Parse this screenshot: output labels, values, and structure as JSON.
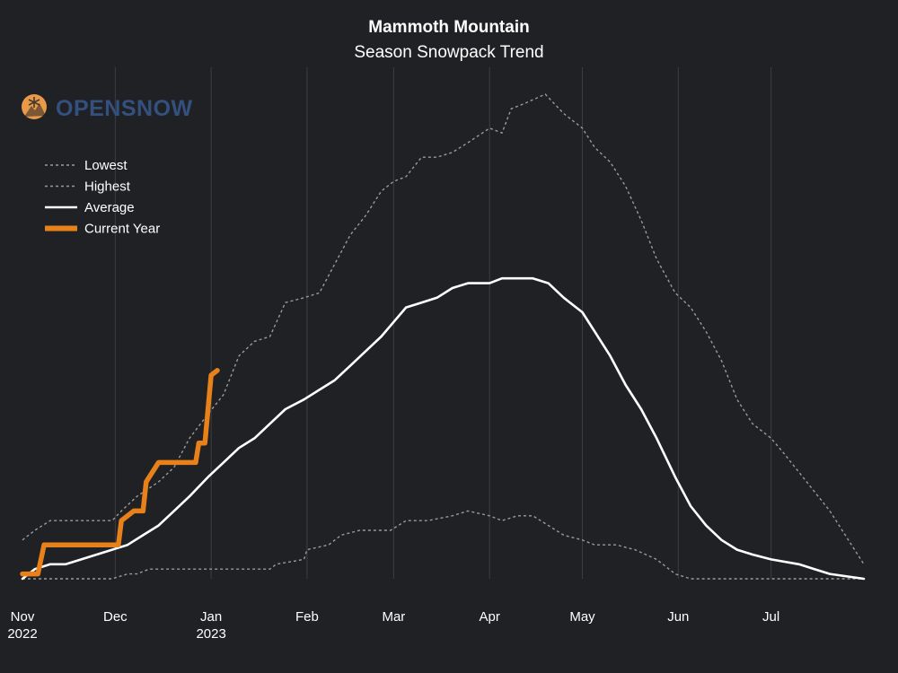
{
  "chart_data": {
    "type": "line",
    "title": "Mammoth Mountain",
    "subtitle": "Season Snowpack Trend",
    "brand": "OPENSNOW",
    "xlabel": "",
    "ylabel": "",
    "grid": {
      "vertical": true,
      "horizontal": false
    },
    "legend_position": "top-left",
    "x_ticks": [
      {
        "date": "2022-11-01",
        "label": "Nov",
        "label2": "2022"
      },
      {
        "date": "2022-12-01",
        "label": "Dec",
        "label2": ""
      },
      {
        "date": "2023-01-01",
        "label": "Jan",
        "label2": "2023"
      },
      {
        "date": "2023-02-01",
        "label": "Feb",
        "label2": ""
      },
      {
        "date": "2023-03-01",
        "label": "Mar",
        "label2": ""
      },
      {
        "date": "2023-04-01",
        "label": "Apr",
        "label2": ""
      },
      {
        "date": "2023-05-01",
        "label": "May",
        "label2": ""
      },
      {
        "date": "2023-06-01",
        "label": "Jun",
        "label2": ""
      },
      {
        "date": "2023-07-01",
        "label": "Jul",
        "label2": ""
      }
    ],
    "xlim": [
      "2022-11-01",
      "2023-07-31"
    ],
    "ylim": [
      0,
      1
    ],
    "colors": {
      "background": "#202124",
      "grid": "#3c3e42",
      "lowest": "#9a9a9a",
      "highest": "#9a9a9a",
      "average": "#ffffff",
      "current": "#e8811a",
      "brand_icon": "#e89a4a",
      "brand_text": "#33507e"
    },
    "series": [
      {
        "name": "Lowest",
        "style": "dashed",
        "points": [
          [
            "2022-11-01",
            0.0
          ],
          [
            "2022-11-15",
            0.0
          ],
          [
            "2022-11-20",
            0.0
          ],
          [
            "2022-11-30",
            0.0
          ],
          [
            "2022-12-05",
            0.01
          ],
          [
            "2022-12-08",
            0.01
          ],
          [
            "2022-12-12",
            0.02
          ],
          [
            "2022-12-20",
            0.02
          ],
          [
            "2022-12-31",
            0.02
          ],
          [
            "2023-01-10",
            0.02
          ],
          [
            "2023-01-20",
            0.02
          ],
          [
            "2023-01-22",
            0.03
          ],
          [
            "2023-01-31",
            0.04
          ],
          [
            "2023-02-01",
            0.06
          ],
          [
            "2023-02-08",
            0.07
          ],
          [
            "2023-02-12",
            0.09
          ],
          [
            "2023-02-18",
            0.1
          ],
          [
            "2023-02-28",
            0.1
          ],
          [
            "2023-03-05",
            0.12
          ],
          [
            "2023-03-12",
            0.12
          ],
          [
            "2023-03-20",
            0.13
          ],
          [
            "2023-03-25",
            0.14
          ],
          [
            "2023-04-01",
            0.13
          ],
          [
            "2023-04-05",
            0.12
          ],
          [
            "2023-04-10",
            0.13
          ],
          [
            "2023-04-15",
            0.13
          ],
          [
            "2023-04-20",
            0.11
          ],
          [
            "2023-04-25",
            0.09
          ],
          [
            "2023-05-01",
            0.08
          ],
          [
            "2023-05-05",
            0.07
          ],
          [
            "2023-05-12",
            0.07
          ],
          [
            "2023-05-18",
            0.06
          ],
          [
            "2023-05-25",
            0.04
          ],
          [
            "2023-05-31",
            0.01
          ],
          [
            "2023-06-05",
            0.0
          ],
          [
            "2023-06-15",
            0.0
          ],
          [
            "2023-07-01",
            0.0
          ],
          [
            "2023-07-15",
            0.0
          ],
          [
            "2023-07-31",
            0.0
          ]
        ]
      },
      {
        "name": "Highest",
        "style": "dashed",
        "points": [
          [
            "2022-11-01",
            0.08
          ],
          [
            "2022-11-05",
            0.1
          ],
          [
            "2022-11-10",
            0.12
          ],
          [
            "2022-11-20",
            0.12
          ],
          [
            "2022-11-30",
            0.12
          ],
          [
            "2022-12-03",
            0.14
          ],
          [
            "2022-12-08",
            0.17
          ],
          [
            "2022-12-15",
            0.2
          ],
          [
            "2022-12-20",
            0.23
          ],
          [
            "2022-12-25",
            0.29
          ],
          [
            "2022-12-31",
            0.34
          ],
          [
            "2023-01-05",
            0.38
          ],
          [
            "2023-01-10",
            0.46
          ],
          [
            "2023-01-15",
            0.49
          ],
          [
            "2023-01-20",
            0.5
          ],
          [
            "2023-01-25",
            0.57
          ],
          [
            "2023-01-31",
            0.58
          ],
          [
            "2023-02-05",
            0.59
          ],
          [
            "2023-02-10",
            0.65
          ],
          [
            "2023-02-15",
            0.71
          ],
          [
            "2023-02-20",
            0.75
          ],
          [
            "2023-02-25",
            0.8
          ],
          [
            "2023-03-01",
            0.82
          ],
          [
            "2023-03-05",
            0.83
          ],
          [
            "2023-03-10",
            0.87
          ],
          [
            "2023-03-15",
            0.87
          ],
          [
            "2023-03-20",
            0.88
          ],
          [
            "2023-03-25",
            0.9
          ],
          [
            "2023-04-01",
            0.93
          ],
          [
            "2023-04-05",
            0.92
          ],
          [
            "2023-04-08",
            0.97
          ],
          [
            "2023-04-12",
            0.98
          ],
          [
            "2023-04-19",
            1.0
          ],
          [
            "2023-04-25",
            0.96
          ],
          [
            "2023-05-01",
            0.93
          ],
          [
            "2023-05-05",
            0.89
          ],
          [
            "2023-05-10",
            0.86
          ],
          [
            "2023-05-15",
            0.81
          ],
          [
            "2023-05-20",
            0.74
          ],
          [
            "2023-05-25",
            0.66
          ],
          [
            "2023-05-31",
            0.59
          ],
          [
            "2023-06-05",
            0.56
          ],
          [
            "2023-06-10",
            0.51
          ],
          [
            "2023-06-15",
            0.45
          ],
          [
            "2023-06-20",
            0.37
          ],
          [
            "2023-06-25",
            0.32
          ],
          [
            "2023-07-01",
            0.29
          ],
          [
            "2023-07-05",
            0.26
          ],
          [
            "2023-07-10",
            0.22
          ],
          [
            "2023-07-15",
            0.18
          ],
          [
            "2023-07-20",
            0.14
          ],
          [
            "2023-07-25",
            0.09
          ],
          [
            "2023-07-31",
            0.03
          ]
        ]
      },
      {
        "name": "Average",
        "style": "solid",
        "points": [
          [
            "2022-11-01",
            0.0
          ],
          [
            "2022-11-05",
            0.02
          ],
          [
            "2022-11-10",
            0.03
          ],
          [
            "2022-11-15",
            0.03
          ],
          [
            "2022-11-20",
            0.04
          ],
          [
            "2022-11-30",
            0.06
          ],
          [
            "2022-12-05",
            0.07
          ],
          [
            "2022-12-10",
            0.09
          ],
          [
            "2022-12-15",
            0.11
          ],
          [
            "2022-12-20",
            0.14
          ],
          [
            "2022-12-25",
            0.17
          ],
          [
            "2022-12-31",
            0.21
          ],
          [
            "2023-01-05",
            0.24
          ],
          [
            "2023-01-10",
            0.27
          ],
          [
            "2023-01-15",
            0.29
          ],
          [
            "2023-01-20",
            0.32
          ],
          [
            "2023-01-25",
            0.35
          ],
          [
            "2023-01-31",
            0.37
          ],
          [
            "2023-02-05",
            0.39
          ],
          [
            "2023-02-10",
            0.41
          ],
          [
            "2023-02-15",
            0.44
          ],
          [
            "2023-02-20",
            0.47
          ],
          [
            "2023-02-25",
            0.5
          ],
          [
            "2023-03-01",
            0.53
          ],
          [
            "2023-03-05",
            0.56
          ],
          [
            "2023-03-10",
            0.57
          ],
          [
            "2023-03-15",
            0.58
          ],
          [
            "2023-03-20",
            0.6
          ],
          [
            "2023-03-25",
            0.61
          ],
          [
            "2023-04-01",
            0.61
          ],
          [
            "2023-04-05",
            0.62
          ],
          [
            "2023-04-10",
            0.62
          ],
          [
            "2023-04-15",
            0.62
          ],
          [
            "2023-04-20",
            0.61
          ],
          [
            "2023-04-25",
            0.58
          ],
          [
            "2023-05-01",
            0.55
          ],
          [
            "2023-05-05",
            0.51
          ],
          [
            "2023-05-10",
            0.46
          ],
          [
            "2023-05-15",
            0.4
          ],
          [
            "2023-05-20",
            0.35
          ],
          [
            "2023-05-25",
            0.29
          ],
          [
            "2023-05-31",
            0.21
          ],
          [
            "2023-06-05",
            0.15
          ],
          [
            "2023-06-10",
            0.11
          ],
          [
            "2023-06-15",
            0.08
          ],
          [
            "2023-06-20",
            0.06
          ],
          [
            "2023-06-25",
            0.05
          ],
          [
            "2023-07-01",
            0.04
          ],
          [
            "2023-07-10",
            0.03
          ],
          [
            "2023-07-15",
            0.02
          ],
          [
            "2023-07-20",
            0.01
          ],
          [
            "2023-07-31",
            0.0
          ]
        ]
      },
      {
        "name": "Current Year",
        "style": "thick",
        "points": [
          [
            "2022-11-01",
            0.01
          ],
          [
            "2022-11-06",
            0.01
          ],
          [
            "2022-11-08",
            0.07
          ],
          [
            "2022-11-12",
            0.07
          ],
          [
            "2022-11-20",
            0.07
          ],
          [
            "2022-11-30",
            0.07
          ],
          [
            "2022-12-02",
            0.07
          ],
          [
            "2022-12-03",
            0.12
          ],
          [
            "2022-12-07",
            0.14
          ],
          [
            "2022-12-10",
            0.14
          ],
          [
            "2022-12-11",
            0.2
          ],
          [
            "2022-12-15",
            0.24
          ],
          [
            "2022-12-20",
            0.24
          ],
          [
            "2022-12-25",
            0.24
          ],
          [
            "2022-12-27",
            0.24
          ],
          [
            "2022-12-28",
            0.28
          ],
          [
            "2022-12-30",
            0.28
          ],
          [
            "2023-01-01",
            0.42
          ],
          [
            "2023-01-03",
            0.43
          ]
        ]
      }
    ]
  }
}
